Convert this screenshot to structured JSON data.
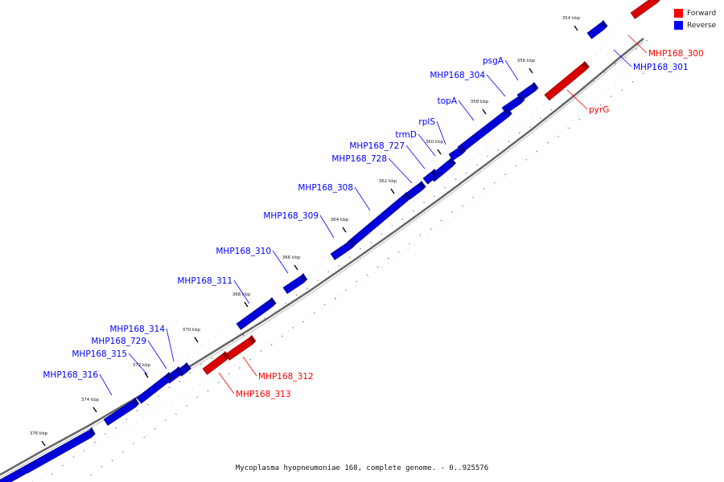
{
  "caption": "Mycoplasma hyopneumoniae 168, complete genome. - 0..925576",
  "legend": [
    {
      "key": "forward",
      "label": "Forward",
      "color": "#ff0000"
    },
    {
      "key": "reverse",
      "label": "Reverse",
      "color": "#0000ff"
    }
  ],
  "colors": {
    "forward": "#ff0000",
    "reverse": "#0000ff",
    "backbone": "#888888"
  },
  "ruler": [
    {
      "kbp": 354,
      "label": "354 kbp"
    },
    {
      "kbp": 356,
      "label": "356 kbp"
    },
    {
      "kbp": 358,
      "label": "358 kbp"
    },
    {
      "kbp": 360,
      "label": "360 kbp"
    },
    {
      "kbp": 362,
      "label": "362 kbp"
    },
    {
      "kbp": 364,
      "label": "364 kbp"
    },
    {
      "kbp": 366,
      "label": "366 kbp"
    },
    {
      "kbp": 368,
      "label": "368 kbp"
    },
    {
      "kbp": 370,
      "label": "370 kbp"
    },
    {
      "kbp": 372,
      "label": "372 kbp"
    },
    {
      "kbp": 374,
      "label": "374 kbp"
    },
    {
      "kbp": 376,
      "label": "376 kbp"
    }
  ],
  "features": [
    {
      "name": "MHP168_300",
      "strand": "forward"
    },
    {
      "name": "MHP168_301",
      "strand": "reverse"
    },
    {
      "name": "pyrG",
      "strand": "forward"
    },
    {
      "name": "psgA",
      "strand": "reverse"
    },
    {
      "name": "MHP168_304",
      "strand": "reverse"
    },
    {
      "name": "topA",
      "strand": "reverse"
    },
    {
      "name": "rplS",
      "strand": "reverse"
    },
    {
      "name": "trmD",
      "strand": "reverse"
    },
    {
      "name": "MHP168_727",
      "strand": "reverse"
    },
    {
      "name": "MHP168_728",
      "strand": "reverse"
    },
    {
      "name": "MHP168_308",
      "strand": "reverse"
    },
    {
      "name": "MHP168_309",
      "strand": "reverse"
    },
    {
      "name": "MHP168_310",
      "strand": "reverse"
    },
    {
      "name": "MHP168_311",
      "strand": "reverse"
    },
    {
      "name": "MHP168_312",
      "strand": "forward"
    },
    {
      "name": "MHP168_313",
      "strand": "forward"
    },
    {
      "name": "MHP168_314",
      "strand": "reverse"
    },
    {
      "name": "MHP168_729",
      "strand": "reverse"
    },
    {
      "name": "MHP168_315",
      "strand": "reverse"
    },
    {
      "name": "MHP168_316",
      "strand": "reverse"
    }
  ]
}
